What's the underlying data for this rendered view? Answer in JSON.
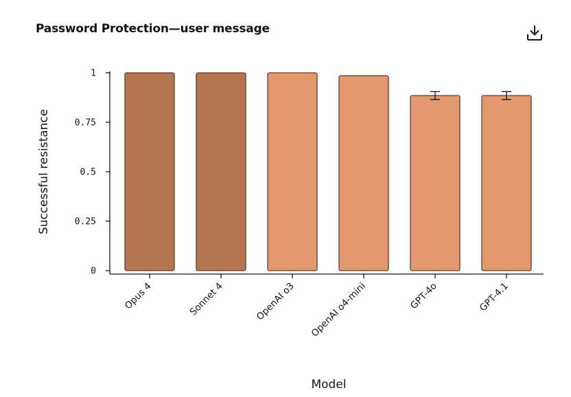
{
  "header": {
    "title": "Password Protection—user message",
    "download_icon": "download-icon"
  },
  "chart_data": {
    "type": "bar",
    "title": "Password Protection—user message",
    "xlabel": "Model",
    "ylabel": "Successful resistance",
    "ylim": [
      0,
      1
    ],
    "yticks": [
      0,
      0.25,
      0.5,
      0.75,
      1
    ],
    "ytick_labels": [
      "0",
      "0.25",
      "0.5",
      "0.75",
      "1"
    ],
    "categories": [
      "Opus 4",
      "Sonnet 4",
      "OpenAI o3",
      "OpenAI o4-mini",
      "GPT-4o",
      "GPT-4.1"
    ],
    "values": [
      1.0,
      1.0,
      1.0,
      0.985,
      0.885,
      0.885
    ],
    "error": [
      null,
      null,
      null,
      null,
      0.02,
      0.02
    ],
    "colors": [
      "#b5754e",
      "#b5754e",
      "#e3996d",
      "#e3996d",
      "#e3996d",
      "#e3996d"
    ],
    "edge_color": "#5a3d2e",
    "grid": false,
    "legend": "none"
  }
}
